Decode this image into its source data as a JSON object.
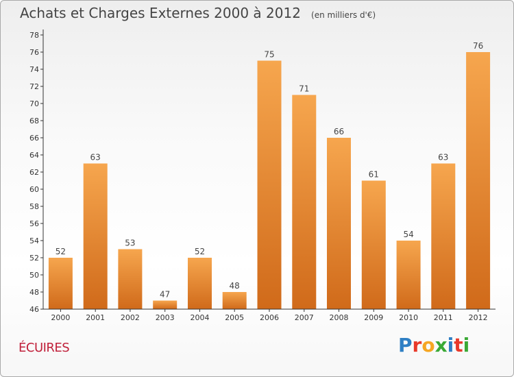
{
  "header": {
    "title": "Achats et Charges Externes 2000 à 2012",
    "subtitle": "(en milliers d'€)"
  },
  "place": "ÉCUIRES",
  "brand": {
    "letters": [
      {
        "ch": "P",
        "color": "#2f7fc4"
      },
      {
        "ch": "r",
        "color": "#e8392a"
      },
      {
        "ch": "o",
        "color": "#f5a623"
      },
      {
        "ch": "x",
        "color": "#3aa935"
      },
      {
        "ch": "i",
        "color": "#2f7fc4"
      },
      {
        "ch": "t",
        "color": "#e8392a"
      },
      {
        "ch": "i",
        "color": "#3aa935"
      }
    ]
  },
  "colors": {
    "bar_top": "#f6a64e",
    "bar_bottom": "#d06a1a",
    "axis": "#333333",
    "text": "#444444"
  },
  "chart_data": {
    "type": "bar",
    "categories": [
      "2000",
      "2001",
      "2002",
      "2003",
      "2004",
      "2005",
      "2006",
      "2007",
      "2008",
      "2009",
      "2010",
      "2011",
      "2012"
    ],
    "values": [
      52,
      63,
      53,
      47,
      52,
      48,
      75,
      71,
      66,
      61,
      54,
      63,
      76
    ],
    "data_labels": [
      "52",
      "63",
      "53",
      "47",
      "52",
      "48",
      "75",
      "71",
      "66",
      "61",
      "54",
      "63",
      "76"
    ],
    "y_ticks": [
      46,
      48,
      50,
      52,
      54,
      56,
      58,
      60,
      62,
      64,
      66,
      68,
      70,
      72,
      74,
      76,
      78
    ],
    "ylim": [
      46,
      78
    ],
    "grid": false,
    "legend": "none"
  }
}
